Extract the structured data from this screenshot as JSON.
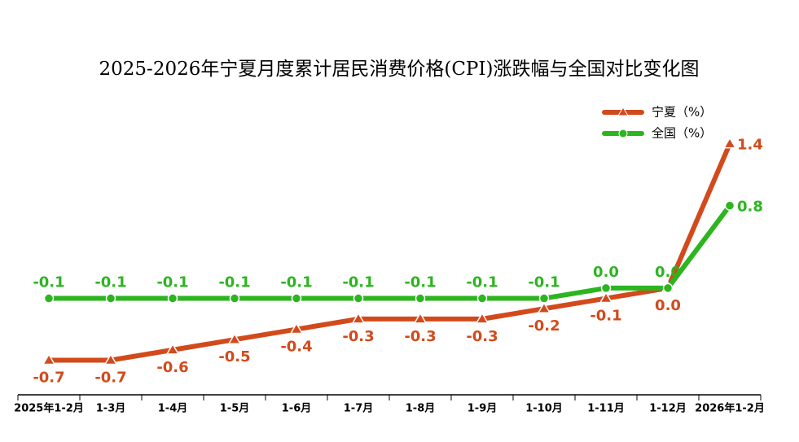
{
  "chart_data": {
    "type": "line",
    "title": "2025-2026年宁夏月度累计居民消费价格(CPI)涨跌幅与全国对比变化图",
    "categories": [
      "2025年1-2月",
      "1-3月",
      "1-4月",
      "1-5月",
      "1-6月",
      "1-7月",
      "1-8月",
      "1-9月",
      "1-10月",
      "1-11月",
      "1-12月",
      "2026年1-2月"
    ],
    "series": [
      {
        "name": "宁夏（%）",
        "color": "#d24a1c",
        "marker": "triangle",
        "values": [
          -0.7,
          -0.7,
          -0.6,
          -0.5,
          -0.4,
          -0.3,
          -0.3,
          -0.3,
          -0.2,
          -0.1,
          0.0,
          1.4
        ],
        "value_labels": [
          "-0.7",
          "-0.7",
          "-0.6",
          "-0.5",
          "-0.4",
          "-0.3",
          "-0.3",
          "-0.3",
          "-0.2",
          "-0.1",
          "0.0",
          "1.4"
        ]
      },
      {
        "name": "全国（%）",
        "color": "#2cb51f",
        "marker": "circle",
        "values": [
          -0.1,
          -0.1,
          -0.1,
          -0.1,
          -0.1,
          -0.1,
          -0.1,
          -0.1,
          -0.1,
          0.0,
          0.0,
          0.8
        ],
        "value_labels": [
          "-0.1",
          "-0.1",
          "-0.1",
          "-0.1",
          "-0.1",
          "-0.1",
          "-0.1",
          "-0.1",
          "-0.1",
          "0.0",
          "0.0",
          "0.8"
        ]
      }
    ],
    "ylim": [
      -1,
      1.5
    ]
  }
}
